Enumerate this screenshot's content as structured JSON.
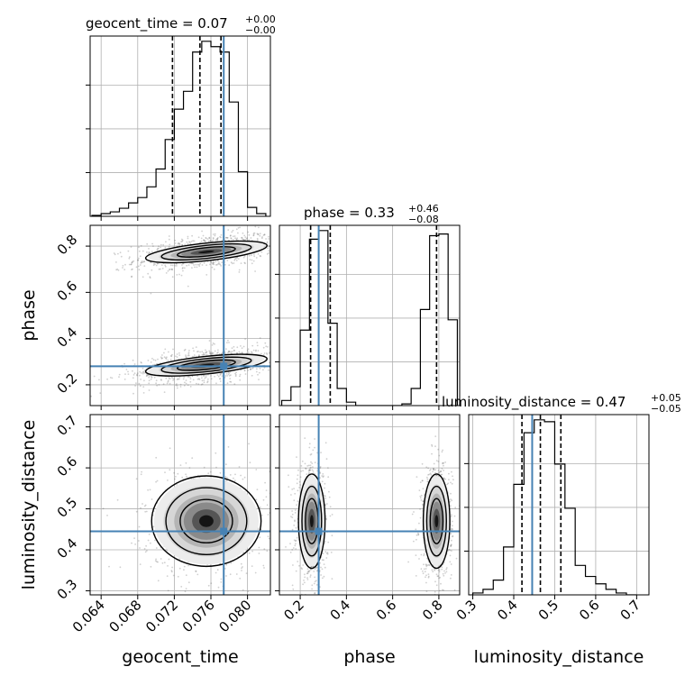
{
  "chart_data": {
    "type": "corner",
    "parameters": [
      "geocent_time",
      "phase",
      "luminosity_distance"
    ],
    "titles": {
      "geocent_time": {
        "name": "geocent_time",
        "median": "0.07",
        "plus": "+0.00",
        "minus": "−0.00"
      },
      "phase": {
        "name": "phase",
        "median": "0.33",
        "plus": "+0.46",
        "minus": "−0.08"
      },
      "luminosity_distance": {
        "name": "luminosity_distance",
        "median": "0.47",
        "plus": "+0.05",
        "minus": "−0.05"
      }
    },
    "axis_labels": {
      "geocent_time": "geocent_time",
      "phase": "phase",
      "luminosity_distance": "luminosity_distance"
    },
    "ranges": {
      "geocent_time": [
        0.0628,
        0.0825
      ],
      "phase": [
        0.11,
        0.89
      ],
      "luminosity_distance": [
        0.29,
        0.73
      ]
    },
    "ticks": {
      "geocent_time": {
        "values": [
          0.064,
          0.068,
          0.072,
          0.076,
          0.08
        ],
        "labels": [
          "0.064",
          "0.068",
          "0.072",
          "0.076",
          "0.080"
        ]
      },
      "phase": {
        "x_values": [
          0.2,
          0.4,
          0.6,
          0.8
        ],
        "x_labels": [
          "0.2",
          "0.4",
          "0.6",
          "0.8"
        ],
        "y_values": [
          0.2,
          0.4,
          0.6,
          0.8
        ],
        "y_labels": [
          "0.2",
          "0.4",
          "0.6",
          "0.8"
        ]
      },
      "luminosity_distance": {
        "values": [
          0.3,
          0.4,
          0.5,
          0.6,
          0.7
        ],
        "labels": [
          "0.3",
          "0.4",
          "0.5",
          "0.6",
          "0.7"
        ]
      }
    },
    "truths": {
      "geocent_time": 0.0774,
      "phase": 0.28,
      "luminosity_distance": 0.445
    },
    "quantiles": {
      "geocent_time": [
        0.0718,
        0.0748,
        0.0771
      ],
      "phase": [
        0.245,
        0.33,
        0.79
      ],
      "luminosity_distance": [
        0.42,
        0.465,
        0.515
      ]
    },
    "histograms": {
      "geocent_time": {
        "edges": [
          0.063,
          0.064,
          0.065,
          0.066,
          0.067,
          0.068,
          0.069,
          0.07,
          0.071,
          0.072,
          0.073,
          0.074,
          0.075,
          0.076,
          0.077,
          0.078,
          0.079,
          0.08,
          0.081,
          0.082
        ],
        "counts": [
          0.5,
          1.5,
          2.5,
          4.5,
          7.5,
          10.5,
          16.5,
          26.5,
          43,
          60,
          70,
          92,
          98,
          95,
          92,
          64,
          25,
          5,
          1.5
        ]
      },
      "phase": {
        "edges": [
          0.12,
          0.16,
          0.2,
          0.24,
          0.28,
          0.32,
          0.36,
          0.4,
          0.44,
          0.48,
          0.52,
          0.56,
          0.6,
          0.64,
          0.68,
          0.72,
          0.76,
          0.8,
          0.84,
          0.88
        ],
        "counts": [
          3,
          11,
          44,
          97,
          102,
          48,
          10,
          2,
          0,
          0,
          0,
          0,
          0,
          1,
          10,
          56,
          99,
          100,
          50
        ]
      },
      "luminosity_distance": {
        "edges": [
          0.3,
          0.325,
          0.35,
          0.375,
          0.4,
          0.425,
          0.45,
          0.475,
          0.5,
          0.525,
          0.55,
          0.575,
          0.6,
          0.625,
          0.65,
          0.675,
          0.7
        ],
        "counts": [
          1,
          3,
          8,
          26,
          60,
          88,
          95,
          94,
          71,
          47,
          16,
          10,
          6,
          3,
          1,
          0
        ]
      }
    },
    "joint_modes": {
      "phase_vs_geocent_time": [
        {
          "x": 0.0755,
          "y": 0.775,
          "sx": 0.0029,
          "sy": 0.03,
          "rho": 0.45
        },
        {
          "x": 0.0755,
          "y": 0.285,
          "sx": 0.0029,
          "sy": 0.03,
          "rho": 0.45
        }
      ],
      "luminosity_distance_vs_geocent_time": [
        {
          "x": 0.0755,
          "y": 0.47,
          "sx": 0.0026,
          "sy": 0.048,
          "rho": 0.0
        }
      ],
      "luminosity_distance_vs_phase": [
        {
          "x": 0.25,
          "y": 0.47,
          "sx": 0.025,
          "sy": 0.05,
          "rho": 0.0
        },
        {
          "x": 0.79,
          "y": 0.47,
          "sx": 0.025,
          "sy": 0.05,
          "rho": 0.0
        }
      ]
    },
    "colors": {
      "truth": "#4682b4",
      "hist": "#000000",
      "grid": "#b0b0b0"
    },
    "grid": true
  }
}
